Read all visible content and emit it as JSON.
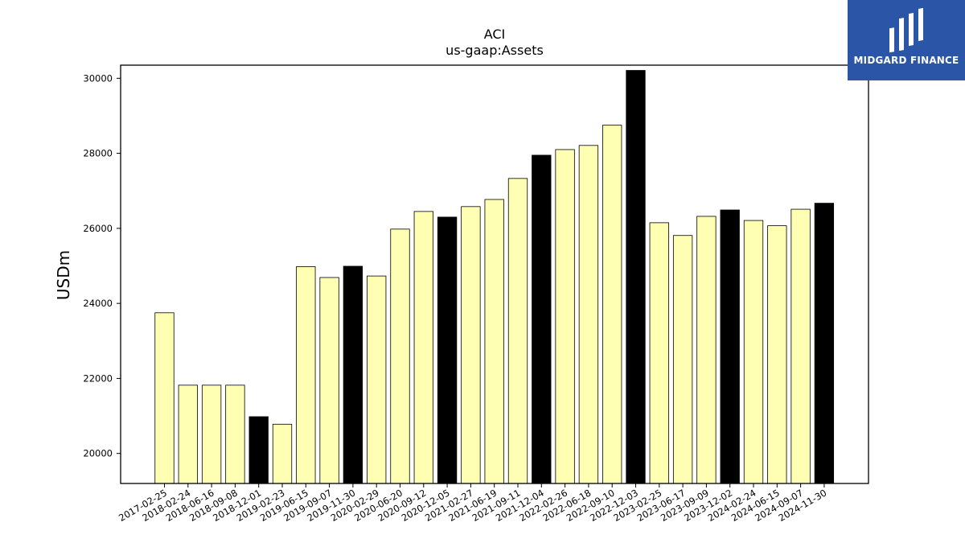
{
  "chart_data": {
    "type": "bar",
    "title": "ACI",
    "subtitle": "us-gaap:Assets",
    "xlabel": "",
    "ylabel": "USDm",
    "ylim": [
      19200,
      30350
    ],
    "yticks": [
      20000,
      22000,
      24000,
      26000,
      28000,
      30000
    ],
    "grid": false,
    "categories": [
      "2017-02-25",
      "2018-02-24",
      "2018-06-16",
      "2018-09-08",
      "2018-12-01",
      "2019-02-23",
      "2019-06-15",
      "2019-09-07",
      "2019-11-30",
      "2020-02-29",
      "2020-06-20",
      "2020-09-12",
      "2020-12-05",
      "2021-02-27",
      "2021-06-19",
      "2021-09-11",
      "2021-12-04",
      "2022-02-26",
      "2022-06-18",
      "2022-09-10",
      "2022-12-03",
      "2023-02-25",
      "2023-06-17",
      "2023-09-09",
      "2023-12-02",
      "2024-02-24",
      "2024-06-15",
      "2024-09-07",
      "2024-11-30"
    ],
    "values": [
      23750,
      21820,
      21820,
      21820,
      20980,
      20780,
      24980,
      24690,
      24990,
      24730,
      25980,
      26450,
      26300,
      26580,
      26770,
      27330,
      27950,
      28100,
      28210,
      28750,
      30210,
      26150,
      25810,
      26320,
      26490,
      26210,
      26070,
      26510,
      26670
    ],
    "highlighted": [
      false,
      false,
      false,
      false,
      true,
      false,
      false,
      false,
      true,
      false,
      false,
      false,
      true,
      false,
      false,
      false,
      true,
      false,
      false,
      false,
      true,
      false,
      false,
      false,
      true,
      false,
      false,
      false,
      true
    ],
    "colors": {
      "normal": "#ffffb3",
      "highlight": "#000000",
      "edge": "#000000"
    }
  },
  "logo": {
    "text": "MIDGARD FINANCE",
    "background": "#2b55a6"
  }
}
